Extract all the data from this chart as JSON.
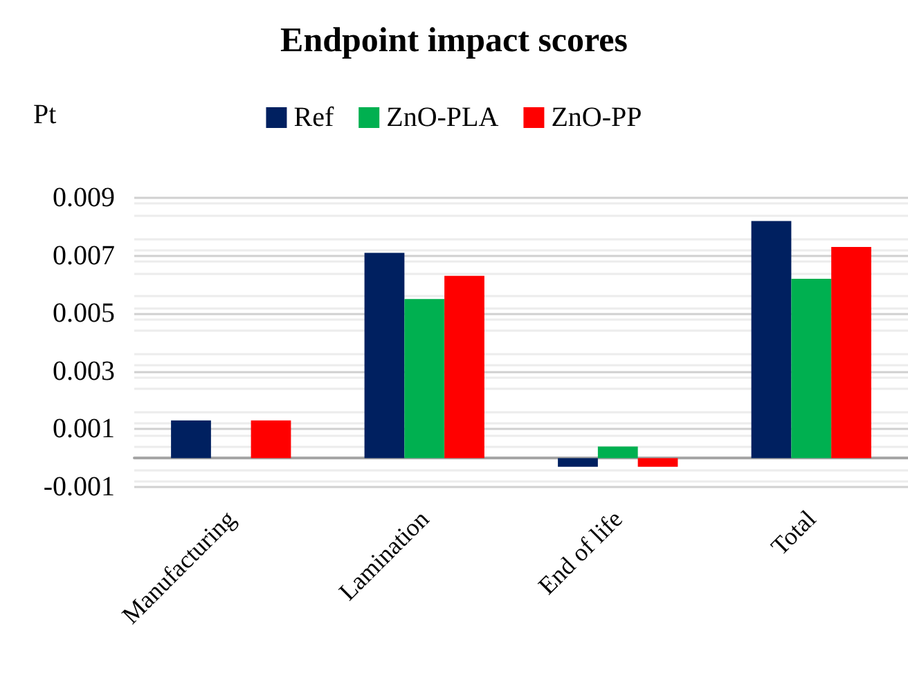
{
  "chart_data": {
    "type": "bar",
    "title": "Endpoint impact scores",
    "ylabel": "Pt",
    "categories": [
      "Manufacturing",
      "Lamination",
      "End of life",
      "Total"
    ],
    "series": [
      {
        "name": "Ref",
        "color": "#002060",
        "values": [
          0.0013,
          0.0071,
          -0.0003,
          0.0082
        ]
      },
      {
        "name": "ZnO-PLA",
        "color": "#00b050",
        "values": [
          0,
          0.0055,
          0.0004,
          0.0062
        ]
      },
      {
        "name": "ZnO-PP",
        "color": "#ff0000",
        "values": [
          0.0013,
          0.0063,
          -0.0003,
          0.0073
        ]
      }
    ],
    "ylim": [
      -0.001,
      0.009
    ],
    "yticks": [
      -0.001,
      0.001,
      0.003,
      0.005,
      0.007,
      0.009
    ],
    "grid": "y",
    "legend": "top"
  }
}
